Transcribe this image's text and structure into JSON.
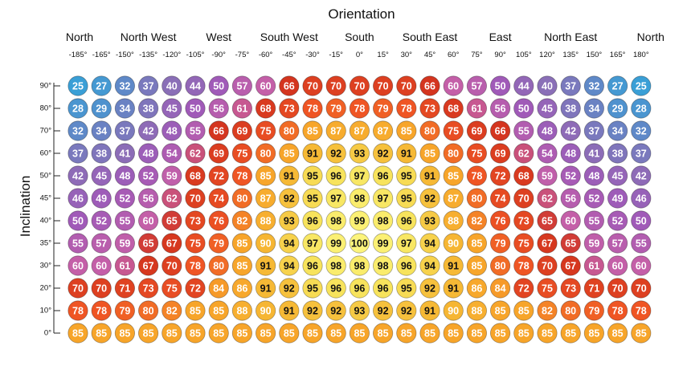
{
  "chart_data": {
    "type": "heatmap",
    "title": "Orientation",
    "xlabel": "Orientation",
    "ylabel": "Inclination",
    "direction_labels": [
      {
        "label": "North",
        "at": "-180°"
      },
      {
        "label": "North West",
        "at": "-135°"
      },
      {
        "label": "West",
        "at": "-90°"
      },
      {
        "label": "South West",
        "at": "-45°"
      },
      {
        "label": "South",
        "at": "0°"
      },
      {
        "label": "South East",
        "at": "45°"
      },
      {
        "label": "East",
        "at": "90°"
      },
      {
        "label": "North East",
        "at": "135°"
      },
      {
        "label": "North",
        "at": "180°"
      }
    ],
    "x": [
      "-185°",
      "-165°",
      "-150°",
      "-135°",
      "-120°",
      "-105°",
      "-90°",
      "-75°",
      "-60°",
      "-45°",
      "-30°",
      "-15°",
      "0°",
      "15°",
      "30°",
      "45°",
      "60°",
      "75°",
      "90°",
      "105°",
      "120°",
      "135°",
      "150°",
      "165°",
      "180°"
    ],
    "y": [
      "90°",
      "80°",
      "70°",
      "60°",
      "50°",
      "45°",
      "40°",
      "35°",
      "30°",
      "20°",
      "10°",
      "0°"
    ],
    "values": [
      [
        25,
        27,
        32,
        37,
        40,
        44,
        50,
        57,
        60,
        66,
        70,
        70,
        70,
        70,
        70,
        66,
        60,
        57,
        50,
        44,
        40,
        37,
        32,
        27,
        25
      ],
      [
        28,
        29,
        34,
        38,
        45,
        50,
        56,
        61,
        68,
        73,
        78,
        79,
        78,
        79,
        78,
        73,
        68,
        61,
        56,
        50,
        45,
        38,
        34,
        29,
        28
      ],
      [
        32,
        34,
        37,
        42,
        48,
        55,
        66,
        69,
        75,
        80,
        85,
        87,
        87,
        87,
        85,
        80,
        75,
        69,
        66,
        55,
        48,
        42,
        37,
        34,
        32
      ],
      [
        37,
        38,
        41,
        48,
        54,
        62,
        69,
        75,
        80,
        85,
        91,
        92,
        93,
        92,
        91,
        85,
        80,
        75,
        69,
        62,
        54,
        48,
        41,
        38,
        37
      ],
      [
        42,
        45,
        48,
        52,
        59,
        68,
        72,
        78,
        85,
        91,
        95,
        96,
        97,
        96,
        95,
        91,
        85,
        78,
        72,
        68,
        59,
        52,
        48,
        45,
        42
      ],
      [
        46,
        49,
        52,
        56,
        62,
        70,
        74,
        80,
        87,
        92,
        95,
        97,
        98,
        97,
        95,
        92,
        87,
        80,
        74,
        70,
        62,
        56,
        52,
        49,
        46
      ],
      [
        50,
        52,
        55,
        60,
        65,
        73,
        76,
        82,
        88,
        93,
        96,
        98,
        99,
        98,
        96,
        93,
        88,
        82,
        76,
        73,
        65,
        60,
        55,
        52,
        50
      ],
      [
        55,
        57,
        59,
        65,
        67,
        75,
        79,
        85,
        90,
        94,
        97,
        99,
        100,
        99,
        97,
        94,
        90,
        85,
        79,
        75,
        67,
        65,
        59,
        57,
        55
      ],
      [
        60,
        60,
        61,
        67,
        70,
        78,
        80,
        85,
        91,
        94,
        96,
        98,
        98,
        98,
        96,
        94,
        91,
        85,
        80,
        78,
        70,
        67,
        61,
        60,
        60
      ],
      [
        70,
        70,
        71,
        73,
        75,
        72,
        84,
        86,
        91,
        92,
        95,
        96,
        96,
        96,
        95,
        92,
        91,
        86,
        84,
        72,
        75,
        73,
        71,
        70,
        70
      ],
      [
        78,
        78,
        79,
        80,
        82,
        85,
        85,
        88,
        90,
        91,
        92,
        92,
        93,
        92,
        92,
        91,
        90,
        88,
        85,
        85,
        82,
        80,
        79,
        78,
        78
      ],
      [
        85,
        85,
        85,
        85,
        85,
        85,
        85,
        85,
        85,
        85,
        85,
        85,
        85,
        85,
        85,
        85,
        85,
        85,
        85,
        85,
        85,
        85,
        85,
        85,
        85
      ]
    ],
    "color_scale": [
      {
        "value": 25,
        "color": "#3a9fd6"
      },
      {
        "value": 40,
        "color": "#8a6fb7"
      },
      {
        "value": 50,
        "color": "#a05ab8"
      },
      {
        "value": 60,
        "color": "#c45fa8"
      },
      {
        "value": 66,
        "color": "#d4351f"
      },
      {
        "value": 78,
        "color": "#ef5524"
      },
      {
        "value": 85,
        "color": "#f7a52a"
      },
      {
        "value": 91,
        "color": "#f6b935"
      },
      {
        "value": 96,
        "color": "#f7e35c"
      },
      {
        "value": 100,
        "color": "#fcf47c"
      }
    ],
    "legend": "none",
    "grid": false
  }
}
